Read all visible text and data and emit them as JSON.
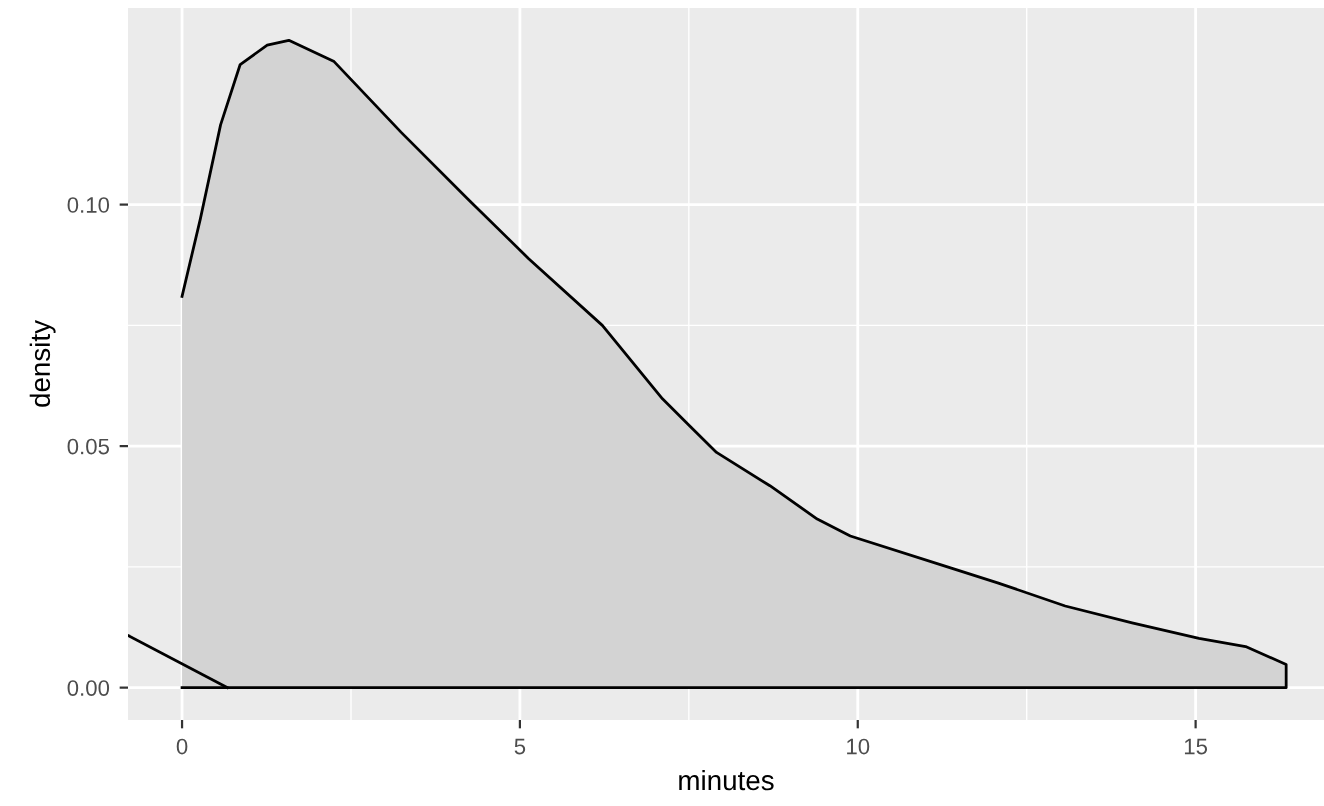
{
  "chart_data": {
    "type": "area",
    "xlabel": "minutes",
    "ylabel": "density",
    "series": [
      {
        "color": "#d3d3d3",
        "x": [
          0,
          0.27,
          0.57,
          0.86,
          1.26,
          1.58,
          2.25,
          3.24,
          4.24,
          5.13,
          6.22,
          7.11,
          7.51,
          7.91,
          8.7,
          9.4,
          9.89,
          11.28,
          12.07,
          13.07,
          14.06,
          15.05,
          15.74,
          16.34
        ],
        "values": [
          0.081,
          0.097,
          0.1165,
          0.129,
          0.133,
          0.134,
          0.1296,
          0.115,
          0.101,
          0.0888,
          0.075,
          0.0598,
          0.0542,
          0.0487,
          0.0418,
          0.0349,
          0.0314,
          0.0252,
          0.0217,
          0.0169,
          0.0134,
          0.0102,
          0.0085,
          0.0048
        ]
      },
      {
        "type": "line",
        "color": "#000000",
        "x": [
          -0.8,
          0.67
        ],
        "values": [
          0.0108,
          0
        ]
      }
    ],
    "xlim": [
      -0.8,
      16.9
    ],
    "ylim": [
      -0.0067,
      0.1407
    ],
    "xticks": [
      0,
      5,
      10,
      15
    ],
    "yticks": [
      {
        "value": 0,
        "label": "0.00"
      },
      {
        "value": 0.05,
        "label": "0.05"
      },
      {
        "value": 0.1,
        "label": "0.10"
      }
    ],
    "grid": true,
    "legend": false
  }
}
